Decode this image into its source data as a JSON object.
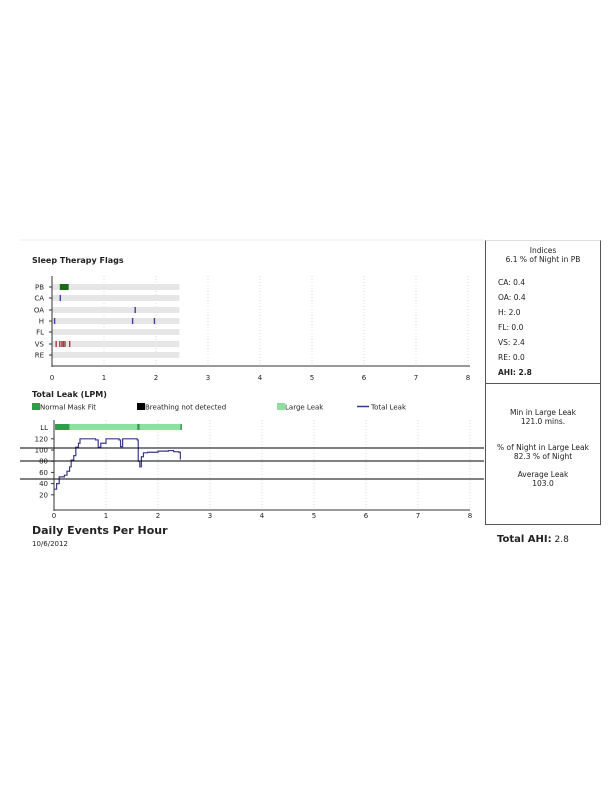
{
  "flags": {
    "title": "Sleep Therapy Flags",
    "rows": [
      "PB",
      "CA",
      "OA",
      "H",
      "FL",
      "VS",
      "RE"
    ]
  },
  "leak": {
    "title": "Total Leak (LPM)",
    "legend": [
      "Normal Mask Fit",
      "Breathing not detected",
      "Large Leak",
      "Total Leak"
    ]
  },
  "panel": {
    "indices_title": "Indices",
    "pb_text": "6.1 % of Night in PB",
    "indices": [
      {
        "label": "CA:",
        "value": "0.4"
      },
      {
        "label": "OA:",
        "value": "0.4"
      },
      {
        "label": "H:",
        "value": "2.0"
      },
      {
        "label": "FL:",
        "value": "0.0"
      },
      {
        "label": "VS:",
        "value": "2.4"
      },
      {
        "label": "RE:",
        "value": "0.0"
      }
    ],
    "ahi_label": "AHI:",
    "ahi_value": "2.8",
    "min_large_leak_label": "Min in Large Leak",
    "min_large_leak_value": "121.0  mins.",
    "pct_large_leak_label": "% of Night in Large Leak",
    "pct_large_leak_value": "82.3 % of Night",
    "avg_leak_label": "Average Leak",
    "avg_leak_value": "103.0"
  },
  "footer": {
    "title": "Daily Events Per Hour",
    "date": "10/6/2012",
    "total_ahi_label": "Total AHI:",
    "total_ahi_value": "2.8"
  },
  "colors": {
    "normal": "#2e9e4a",
    "breathing": "#000000",
    "large": "#8fe0a0",
    "line": "#3a3a8a",
    "pb": "#1a6a1a",
    "vs": "#a04040",
    "event": "#4040a0",
    "track": "#e6e6e6"
  },
  "chart_data": [
    {
      "type": "timeline",
      "title": "Sleep Therapy Flags",
      "x_ticks": [
        0,
        1,
        2,
        3,
        4,
        5,
        6,
        7,
        8
      ],
      "xlim": [
        0,
        8
      ],
      "session_end": 2.45,
      "events": {
        "PB": [
          [
            0.15,
            0.32
          ]
        ],
        "CA": [
          0.16
        ],
        "OA": [
          1.6
        ],
        "H": [
          0.05,
          1.55,
          1.97
        ],
        "FL": [],
        "VS": [
          0.08,
          0.15,
          0.19,
          0.22,
          0.25,
          0.34
        ],
        "RE": []
      }
    },
    {
      "type": "line",
      "title": "Total Leak (LPM)",
      "x_ticks": [
        0,
        1,
        2,
        3,
        4,
        5,
        6,
        7,
        8
      ],
      "y_ticks": [
        20,
        40,
        60,
        80,
        100,
        120
      ],
      "xlim": [
        0,
        8
      ],
      "ylim": [
        0,
        130
      ],
      "series": [
        {
          "name": "Total Leak",
          "points": [
            [
              0,
              30
            ],
            [
              0.05,
              40
            ],
            [
              0.1,
              52
            ],
            [
              0.2,
              55
            ],
            [
              0.25,
              62
            ],
            [
              0.3,
              70
            ],
            [
              0.33,
              82
            ],
            [
              0.38,
              90
            ],
            [
              0.42,
              105
            ],
            [
              0.47,
              112
            ],
            [
              0.5,
              120
            ],
            [
              0.8,
              118
            ],
            [
              0.85,
              105
            ],
            [
              0.9,
              112
            ],
            [
              1.0,
              120
            ],
            [
              1.25,
              118
            ],
            [
              1.28,
              106
            ],
            [
              1.32,
              120
            ],
            [
              1.6,
              118
            ],
            [
              1.62,
              80
            ],
            [
              1.65,
              70
            ],
            [
              1.68,
              88
            ],
            [
              1.72,
              95
            ],
            [
              1.8,
              96
            ],
            [
              2.0,
              98
            ],
            [
              2.2,
              99
            ],
            [
              2.3,
              97
            ],
            [
              2.4,
              96
            ],
            [
              2.43,
              83
            ]
          ]
        }
      ],
      "status_bar": [
        {
          "kind": "Normal Mask Fit",
          "from": 0.02,
          "to": 0.3
        },
        {
          "kind": "Large Leak",
          "from": 0.3,
          "to": 1.6
        },
        {
          "kind": "Normal Mask Fit",
          "from": 1.6,
          "to": 1.65
        },
        {
          "kind": "Large Leak",
          "from": 1.65,
          "to": 2.43
        },
        {
          "kind": "Normal Mask Fit",
          "from": 2.43,
          "to": 2.46
        }
      ],
      "reference_lines": [
        100,
        80,
        50
      ]
    }
  ]
}
